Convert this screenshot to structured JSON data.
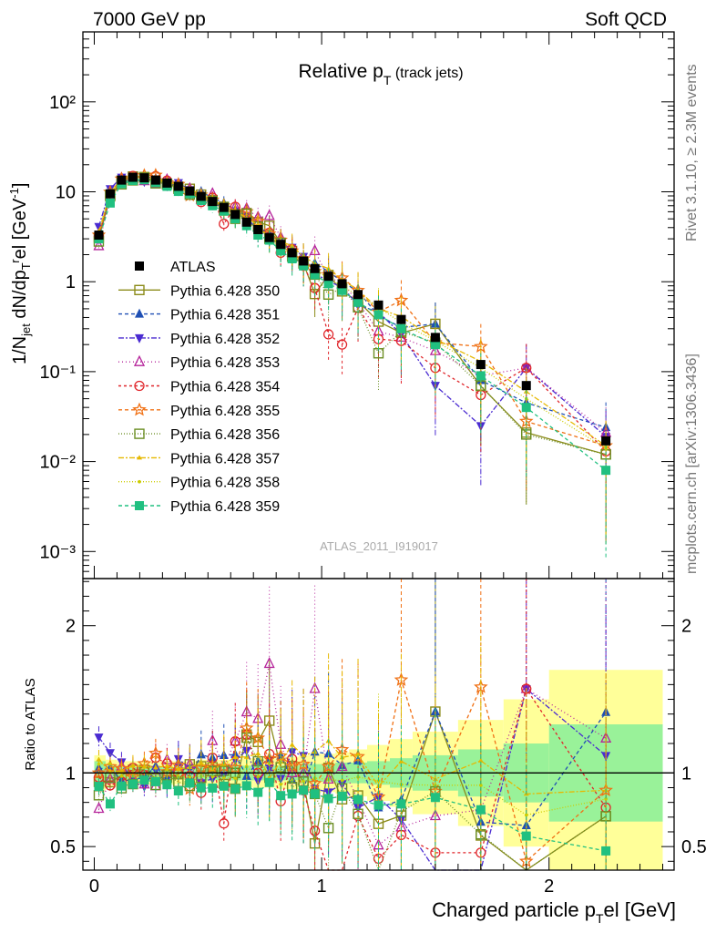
{
  "header": {
    "left": "7000 GeV pp",
    "right": "Soft QCD"
  },
  "side_text": {
    "rivet": "Rivet 3.1.10, ≥ 2.3M events",
    "mcplots": "mcplots.cern.ch [arXiv:1306.3436]"
  },
  "watermark": "ATLAS_2011_I919017",
  "chart_data": {
    "type": "scatter",
    "title": "Relative p",
    "title_sub": "T",
    "title_suffix": " (track jets)",
    "ylabel_main": "1/N_jet dN/dp_T^rel [GeV^-1]",
    "ylabel_ratio": "Ratio to ATLAS",
    "xlabel": "Charged particle p",
    "xlabel_sub": "T",
    "xlabel_suffix": "el [GeV]",
    "xlim": [
      -0.05,
      2.55
    ],
    "ylim_main": [
      0.0005,
      600
    ],
    "ylim_ratio": [
      0.34,
      2.32
    ],
    "yscale_main": "log",
    "legend_position": "left",
    "x_ticks": [
      "0",
      "1",
      "2"
    ],
    "x_tick_values": [
      0,
      1,
      2
    ],
    "y_ticks_main": [
      "10⁻³",
      "10⁻²",
      "10⁻¹",
      "1",
      "10",
      "10²"
    ],
    "y_tick_values_main": [
      0.001,
      0.01,
      0.1,
      1,
      10,
      100
    ],
    "y_ticks_ratio": [
      "0.5",
      "1",
      "2"
    ],
    "y_tick_values_ratio": [
      0.5,
      1,
      2
    ],
    "x": [
      0.02,
      0.07,
      0.12,
      0.17,
      0.22,
      0.27,
      0.32,
      0.37,
      0.42,
      0.47,
      0.52,
      0.57,
      0.62,
      0.67,
      0.72,
      0.77,
      0.82,
      0.87,
      0.92,
      0.97,
      1.03,
      1.09,
      1.16,
      1.25,
      1.35,
      1.5,
      1.7,
      1.9,
      2.25
    ],
    "reference": {
      "name": "ATLAS",
      "values": [
        3.3,
        9.5,
        13.5,
        14.5,
        14.3,
        13.5,
        12.5,
        11.5,
        10.2,
        8.9,
        7.8,
        6.7,
        5.6,
        4.6,
        3.8,
        3.1,
        2.6,
        2.1,
        1.7,
        1.4,
        1.15,
        0.95,
        0.72,
        0.55,
        0.38,
        0.24,
        0.12,
        0.07,
        0.017
      ],
      "color": "#000000"
    },
    "series": [
      {
        "name": "Pythia 6.428 350",
        "color": "#8b8b1a",
        "marker": "open-square",
        "dash": "",
        "values": [
          3.1,
          8.9,
          13.3,
          14.8,
          14.6,
          13.0,
          12.1,
          11.4,
          10.8,
          9.3,
          8.1,
          6.2,
          5.0,
          5.8,
          4.6,
          4.2,
          2.7,
          2.2,
          1.6,
          0.73,
          1.19,
          0.78,
          0.61,
          0.36,
          0.27,
          0.34,
          0.069,
          0.021,
          0.012
        ]
      },
      {
        "name": "Pythia 6.428 351",
        "color": "#1f4fb4",
        "marker": "triangle-up",
        "dash": "4,3",
        "values": [
          3.4,
          9.8,
          12.8,
          13.8,
          13.9,
          14.1,
          12.0,
          12.3,
          9.8,
          10.0,
          8.6,
          7.5,
          6.3,
          4.5,
          4.1,
          3.4,
          2.9,
          2.0,
          1.5,
          1.6,
          1.3,
          1.0,
          0.78,
          0.42,
          0.31,
          0.34,
          0.08,
          0.045,
          0.024
        ]
      },
      {
        "name": "Pythia 6.428 352",
        "color": "#4a2bd1",
        "marker": "triangle-down",
        "dash": "6,2,2,2",
        "values": [
          4.1,
          10.8,
          14.5,
          13.6,
          13.0,
          13.8,
          11.6,
          12.6,
          10.5,
          8.3,
          7.5,
          6.6,
          6.1,
          5.3,
          3.6,
          3.2,
          2.5,
          2.4,
          1.9,
          1.25,
          1.0,
          0.88,
          0.55,
          0.46,
          0.26,
          0.07,
          0.025,
          0.11,
          0.019
        ]
      },
      {
        "name": "Pythia 6.428 353",
        "color": "#b5249b",
        "marker": "open-triangle",
        "dash": "1,3",
        "values": [
          2.5,
          9.1,
          14.1,
          14.0,
          13.2,
          12.3,
          13.6,
          12.0,
          10.8,
          8.2,
          9.5,
          7.0,
          6.8,
          6.5,
          5.2,
          5.4,
          3.1,
          2.1,
          1.7,
          2.2,
          1.1,
          0.99,
          0.59,
          0.28,
          0.24,
          0.17,
          0.09,
          0.11,
          0.021
        ]
      },
      {
        "name": "Pythia 6.428 354",
        "color": "#e0262b",
        "marker": "open-circle",
        "dash": "3,3",
        "values": [
          3.2,
          8.7,
          12.7,
          15.0,
          14.1,
          14.9,
          13.3,
          11.5,
          10.0,
          7.7,
          8.6,
          4.4,
          6.8,
          5.8,
          3.8,
          3.5,
          2.1,
          2.3,
          1.5,
          0.85,
          0.26,
          0.2,
          0.51,
          0.23,
          0.22,
          0.11,
          0.055,
          0.11,
          0.013
        ]
      },
      {
        "name": "Pythia 6.428 355",
        "color": "#f07014",
        "marker": "star",
        "dash": "4,3",
        "values": [
          3.3,
          9.9,
          13.9,
          14.1,
          15.2,
          15.3,
          12.6,
          12.1,
          9.1,
          9.2,
          8.1,
          7.0,
          5.8,
          6.0,
          4.7,
          3.4,
          2.9,
          2.2,
          1.8,
          1.3,
          1.2,
          1.1,
          0.8,
          0.46,
          0.62,
          0.21,
          0.19,
          0.028,
          0.015
        ]
      },
      {
        "name": "Pythia 6.428 356",
        "color": "#6b8e23",
        "marker": "open-square",
        "dash": "1,2",
        "values": [
          2.8,
          9.2,
          12.1,
          13.4,
          14.4,
          12.4,
          12.3,
          10.8,
          9.3,
          8.6,
          7.9,
          6.8,
          5.6,
          5.7,
          4.1,
          3.0,
          2.7,
          1.9,
          1.6,
          1.2,
          0.72,
          0.85,
          0.52,
          0.16,
          0.28,
          0.21,
          0.07,
          0.02,
          0.012
        ]
      },
      {
        "name": "Pythia 6.428 357",
        "color": "#e6b800",
        "marker": "tri",
        "dash": "6,2,2,2",
        "values": [
          3.6,
          9.6,
          13.7,
          15.2,
          14.9,
          14.0,
          13.1,
          11.8,
          10.6,
          9.5,
          8.0,
          7.1,
          6.2,
          5.1,
          4.3,
          3.0,
          2.8,
          2.5,
          1.9,
          1.6,
          1.4,
          1.05,
          0.81,
          0.5,
          0.41,
          0.23,
          0.13,
          0.06,
          0.015
        ]
      },
      {
        "name": "Pythia 6.428 358",
        "color": "#cccc00",
        "marker": "dot",
        "dash": "1,2",
        "values": [
          3.5,
          10.1,
          13.2,
          14.2,
          13.8,
          13.1,
          12.8,
          11.2,
          9.9,
          8.7,
          7.6,
          6.5,
          5.4,
          4.8,
          3.7,
          3.3,
          2.4,
          2.0,
          1.6,
          1.35,
          1.1,
          0.9,
          0.7,
          0.52,
          0.35,
          0.22,
          0.11,
          0.05,
          0.014
        ]
      },
      {
        "name": "Pythia 6.428 359",
        "color": "#20c080",
        "marker": "square",
        "dash": "4,3",
        "values": [
          3.0,
          7.5,
          12.3,
          13.4,
          13.6,
          12.7,
          11.5,
          10.1,
          9.5,
          8.0,
          7.0,
          6.1,
          5.0,
          4.2,
          3.3,
          2.9,
          2.2,
          1.8,
          1.5,
          1.2,
          0.95,
          0.8,
          0.59,
          0.43,
          0.3,
          0.2,
          0.09,
          0.04,
          0.008
        ]
      }
    ],
    "ratio_bands": {
      "x_edges": [
        0,
        0.05,
        0.1,
        0.15,
        0.2,
        0.25,
        0.3,
        0.35,
        0.4,
        0.45,
        0.5,
        0.55,
        0.6,
        0.65,
        0.7,
        0.75,
        0.8,
        0.85,
        0.9,
        0.95,
        1.0,
        1.06,
        1.12,
        1.2,
        1.3,
        1.4,
        1.6,
        1.8,
        2.0,
        2.5
      ],
      "stat_half_width": [
        0.08,
        0.05,
        0.04,
        0.04,
        0.04,
        0.04,
        0.04,
        0.04,
        0.04,
        0.05,
        0.05,
        0.05,
        0.05,
        0.05,
        0.05,
        0.05,
        0.05,
        0.05,
        0.06,
        0.06,
        0.06,
        0.07,
        0.07,
        0.08,
        0.1,
        0.12,
        0.16,
        0.2,
        0.33
      ],
      "total_half_width": [
        0.12,
        0.09,
        0.08,
        0.08,
        0.08,
        0.08,
        0.08,
        0.08,
        0.08,
        0.09,
        0.09,
        0.09,
        0.09,
        0.1,
        0.1,
        0.1,
        0.11,
        0.11,
        0.12,
        0.13,
        0.13,
        0.14,
        0.16,
        0.19,
        0.23,
        0.28,
        0.36,
        0.5,
        0.7
      ],
      "stat_color": "#99f299",
      "total_color": "#ffff99"
    }
  }
}
